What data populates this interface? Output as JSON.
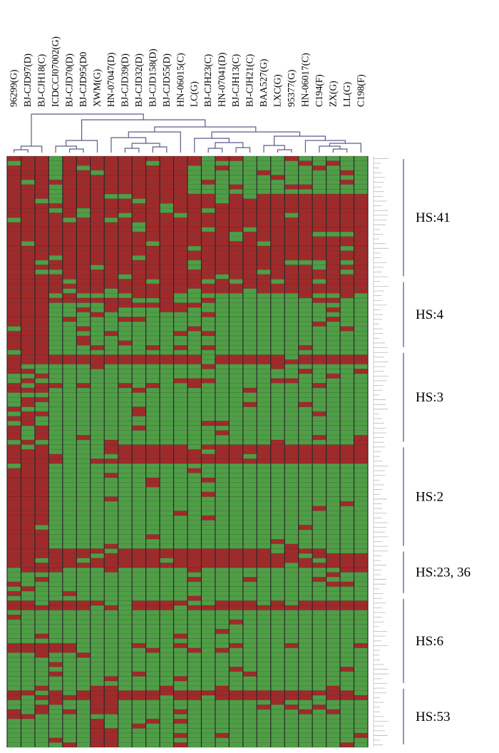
{
  "chart_data": {
    "type": "heatmap",
    "title": "",
    "legend": "none",
    "colors": {
      "present": "#a02a2a",
      "absent": "#4f9e46",
      "gridline": "#2a2a2a",
      "dendrogram": "#5a5a8c",
      "bracket": "#6f7fb0"
    },
    "columns": [
      "96299(G)",
      "BJ-CJD97(D)",
      "BJ-CJH18(C)",
      "ICDCCJ07002(G)",
      "BJ-CJD70(D)",
      "BJ-CJD95(D0",
      "XWM(G)",
      "HN-07047(D)",
      "BJ-CJD39(D)",
      "BJ-CJD32(D)",
      "BJ-CJD158(D)",
      "BJ-CJD55(D)",
      "HN-06015(C)",
      "LC(G)",
      "BJ-CJH23(C)",
      "HN-07041(D)",
      "BJ-CJH13(C)",
      "BJ-CJH21(C)",
      "BAA527(G)",
      "LXC(G)",
      "95377(G)",
      "HN-06017(C)",
      "C194(F)",
      "ZX(G)",
      "LL(G)",
      "C198(F)"
    ],
    "groups": [
      {
        "label": "HS:41",
        "rows": 26
      },
      {
        "label": "HS:4",
        "rows": 15
      },
      {
        "label": "HS:3",
        "rows": 20
      },
      {
        "label": "HS:2",
        "rows": 22
      },
      {
        "label": "HS:23, 36",
        "rows": 10
      },
      {
        "label": "HS:6",
        "rows": 19
      },
      {
        "label": "HS:53",
        "rows": 13
      }
    ],
    "dendrogram_order": "columns as listed, left to right"
  }
}
